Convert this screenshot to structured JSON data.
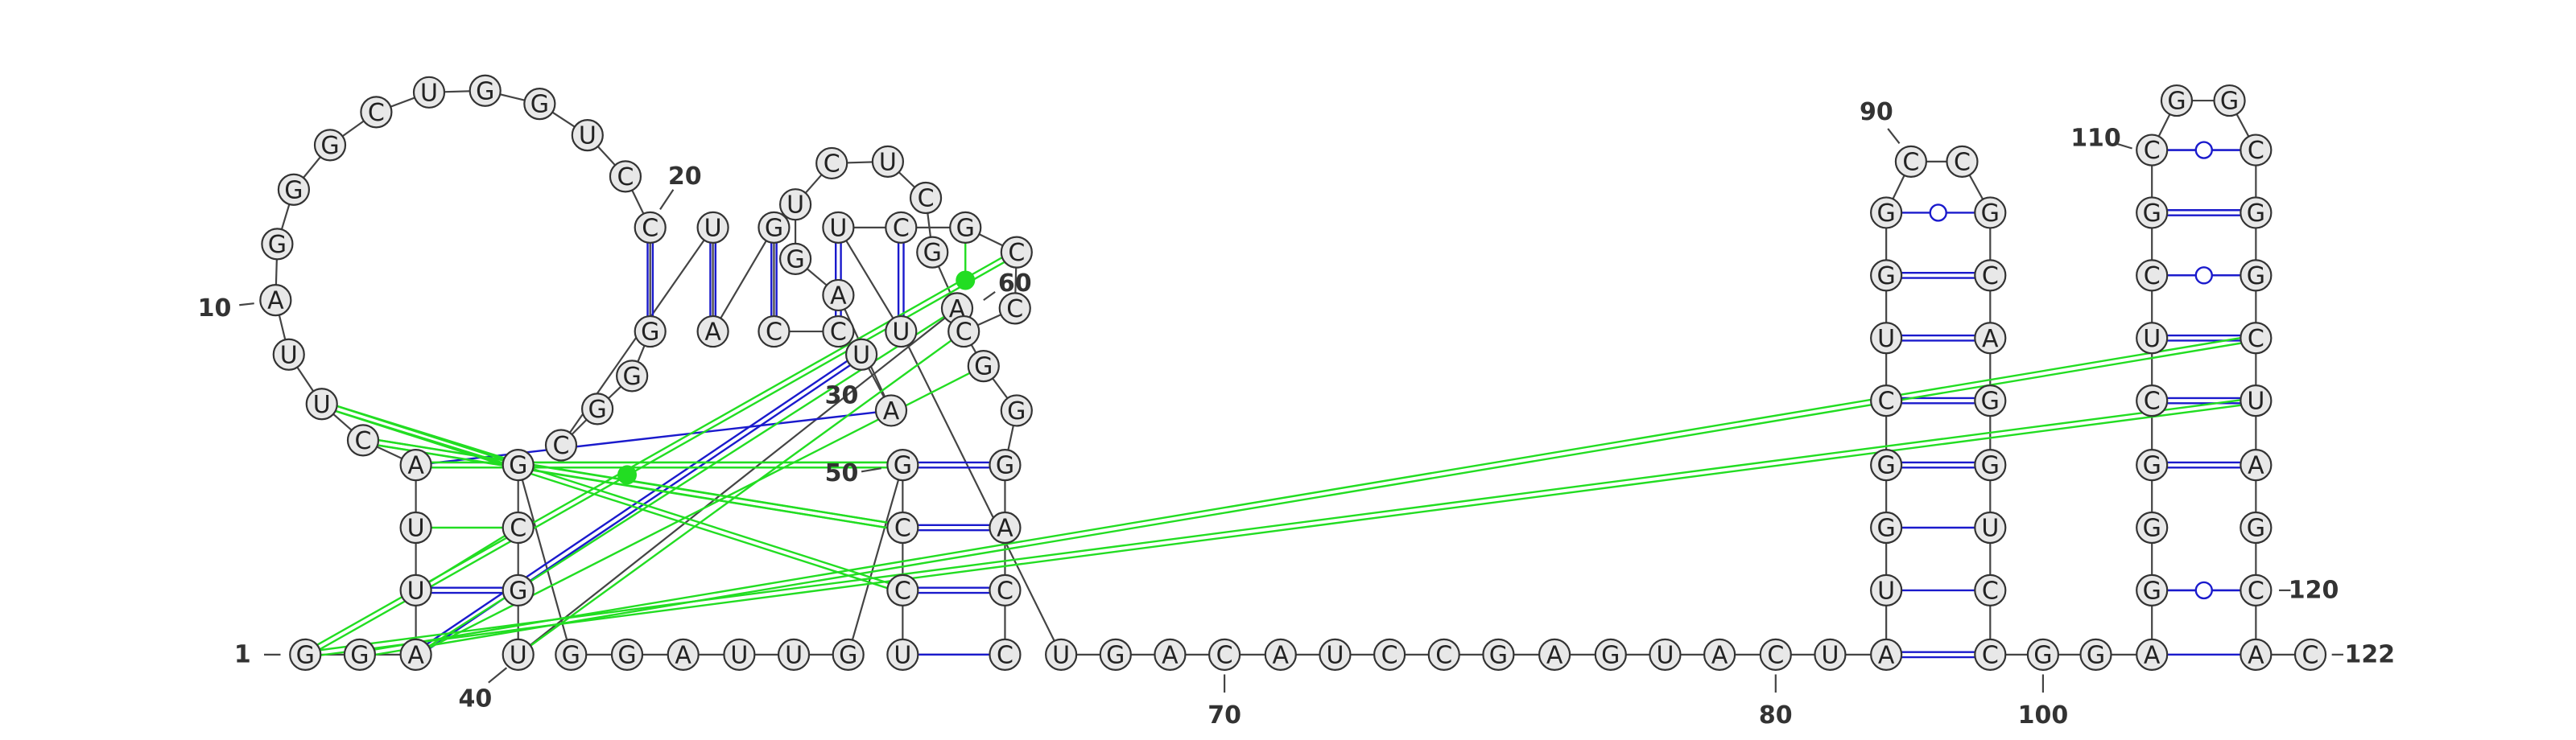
{
  "sequence": "GGAUUACUUAGGGCUGGUCCGGGCUAGCCUAAGUCUCGAUGCGGGAUUGGCCUCCAGGGCCCGCUUUGACAUCCGAGUACUAUGGCUGGCCGCAGGUCCGGAGGGCUCGCGGCGGCUAGCAC",
  "diagram": {
    "numbers": [
      "1",
      "10",
      "20",
      "30",
      "40",
      "50",
      "60",
      "70",
      "80",
      "90",
      "100",
      "110",
      "120",
      "122"
    ]
  },
  "colors": {
    "canonical": "#1a1acc",
    "noncanonical": "#22dd22",
    "backbone": "#444444",
    "nucleotide_fill": "#e8e8e8"
  }
}
